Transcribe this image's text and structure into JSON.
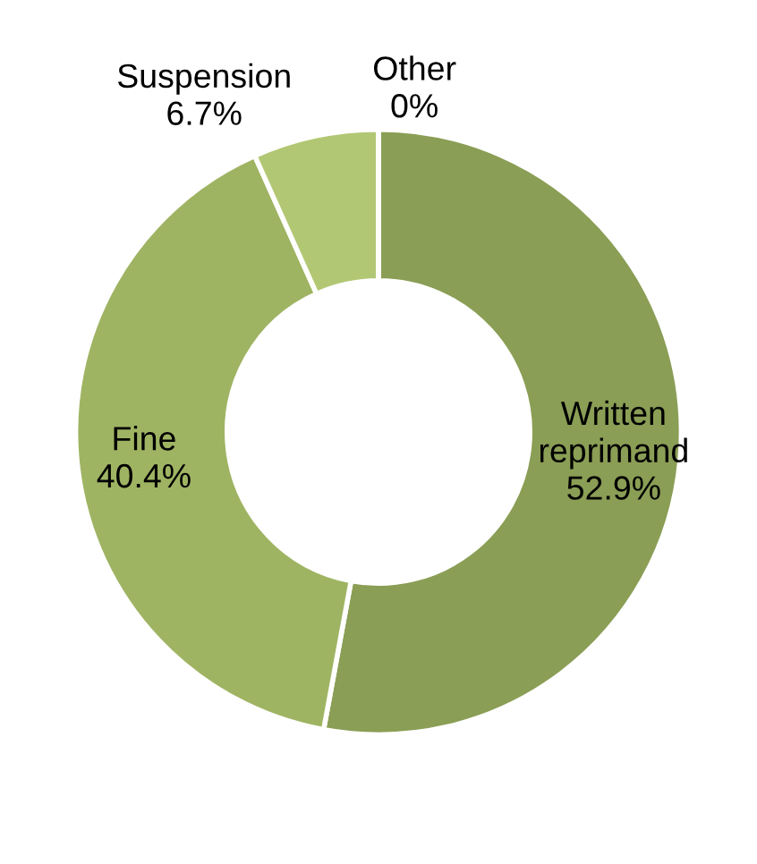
{
  "chart_data": {
    "type": "donut",
    "categories": [
      "Written reprimand",
      "Fine",
      "Suspension",
      "Other"
    ],
    "values": [
      52.9,
      40.4,
      6.7,
      0
    ],
    "colors": [
      "#8a9e55",
      "#9fb462",
      "#b2c773",
      "#c5d88a"
    ],
    "value_labels": [
      "52.9%",
      "40.4%",
      "6.7%",
      "0%"
    ]
  }
}
